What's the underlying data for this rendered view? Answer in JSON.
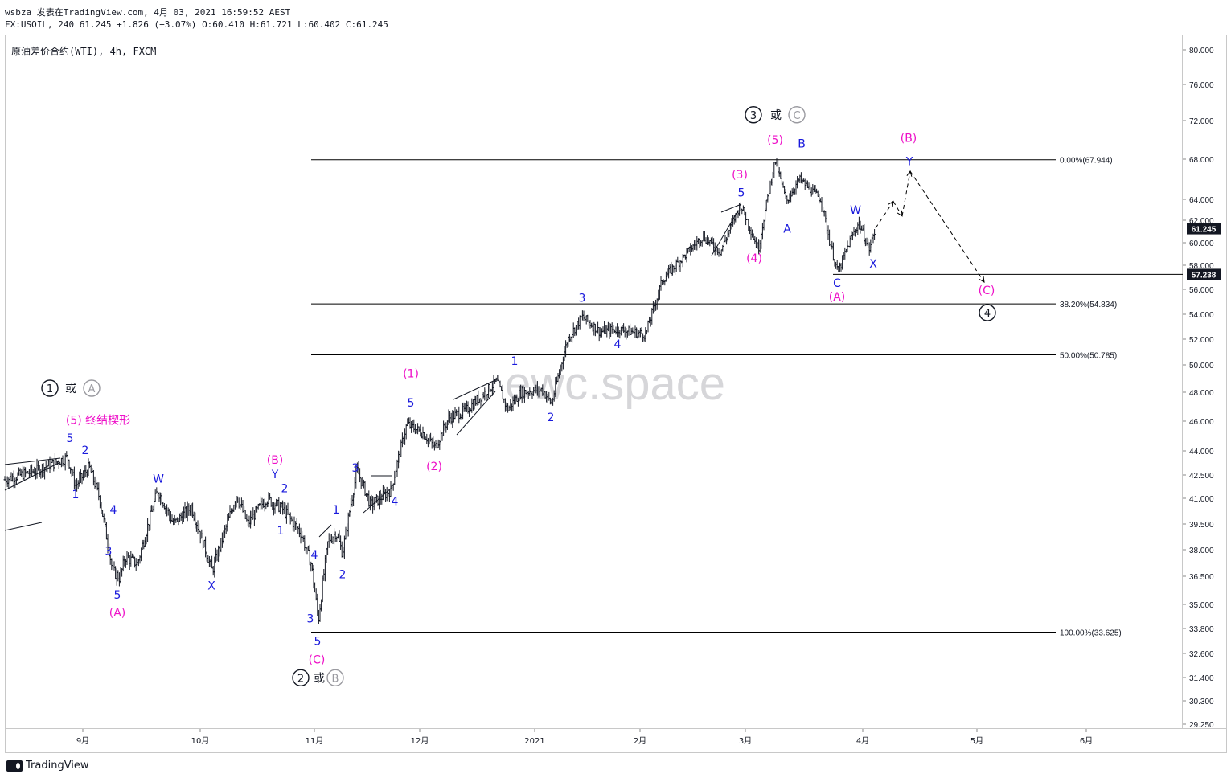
{
  "header": {
    "author": "wsbza",
    "published": "发表在TradingView.com,",
    "datetime": "4月 03, 2021 16:59:52 AEST",
    "symbol_line": "FX:USOIL, 240",
    "last": "61.245",
    "change": "+1.826 (+3.07%)",
    "open": "O:60.410",
    "high": "H:61.721",
    "low": "L:60.402",
    "close": "C:61.245"
  },
  "symbol_title": "原油差价合约(WTI), 4h, FXCM",
  "watermark": "ewc.space",
  "footer_brand": "TradingView",
  "colors": {
    "candle": "#131722",
    "blue_label": "#1a1adc",
    "magenta_label": "#ee10c8",
    "line": "#000000",
    "price_tag_bg": "#131722"
  },
  "chart_data": {
    "type": "candlestick",
    "symbol": "FX:USOIL",
    "timeframe": "240",
    "ylim": [
      28.8,
      81.2
    ],
    "price_axis_ticks": [
      "80.000",
      "76.000",
      "72.000",
      "68.000",
      "64.000",
      "62.000",
      "60.000",
      "58.000",
      "56.000",
      "54.000",
      "52.000",
      "50.000",
      "48.000",
      "46.000",
      "44.000",
      "42.500",
      "41.000",
      "39.500",
      "38.000",
      "36.500",
      "35.000",
      "33.800",
      "32.600",
      "31.400",
      "30.300",
      "29.250"
    ],
    "time_axis_labels": [
      "9月",
      "10月",
      "11月",
      "12月",
      "2021",
      "2月",
      "3月",
      "4月",
      "5月",
      "6月"
    ],
    "price_tags": [
      {
        "value": 61.245,
        "label": "61.245"
      },
      {
        "value": 57.238,
        "label": "57.238"
      }
    ],
    "fibonacci": [
      {
        "label": "0.00%(67.944)",
        "value": 67.944
      },
      {
        "label": "38.20%(54.834)",
        "value": 54.834
      },
      {
        "label": "50.00%(50.785)",
        "value": 50.785
      },
      {
        "label": "100.00%(33.625)",
        "value": 33.625
      }
    ],
    "waypoints": [
      {
        "t": 0,
        "p": 42.2
      },
      {
        "t": 40,
        "p": 42.8
      },
      {
        "t": 78,
        "p": 43.6
      },
      {
        "t": 88,
        "p": 41.8
      },
      {
        "t": 105,
        "p": 43.0
      },
      {
        "t": 118,
        "p": 41.0
      },
      {
        "t": 134,
        "p": 36.8
      },
      {
        "t": 143,
        "p": 36.4
      },
      {
        "t": 150,
        "p": 37.6
      },
      {
        "t": 165,
        "p": 37.2
      },
      {
        "t": 190,
        "p": 41.5
      },
      {
        "t": 210,
        "p": 39.5
      },
      {
        "t": 232,
        "p": 40.5
      },
      {
        "t": 258,
        "p": 36.8
      },
      {
        "t": 288,
        "p": 41.2
      },
      {
        "t": 302,
        "p": 39.5
      },
      {
        "t": 325,
        "p": 41.0
      },
      {
        "t": 345,
        "p": 40.4
      },
      {
        "t": 368,
        "p": 39.0
      },
      {
        "t": 381,
        "p": 37.2
      },
      {
        "t": 390,
        "p": 34.2
      },
      {
        "t": 402,
        "p": 38.5
      },
      {
        "t": 412,
        "p": 39.0
      },
      {
        "t": 420,
        "p": 37.8
      },
      {
        "t": 438,
        "p": 42.8
      },
      {
        "t": 455,
        "p": 40.6
      },
      {
        "t": 480,
        "p": 41.5
      },
      {
        "t": 500,
        "p": 45.8
      },
      {
        "t": 520,
        "p": 45.2
      },
      {
        "t": 535,
        "p": 44.2
      },
      {
        "t": 552,
        "p": 46.2
      },
      {
        "t": 575,
        "p": 46.8
      },
      {
        "t": 612,
        "p": 48.8
      },
      {
        "t": 625,
        "p": 46.8
      },
      {
        "t": 642,
        "p": 48.0
      },
      {
        "t": 668,
        "p": 48.2
      },
      {
        "t": 680,
        "p": 47.2
      },
      {
        "t": 700,
        "p": 52.0
      },
      {
        "t": 718,
        "p": 53.8
      },
      {
        "t": 740,
        "p": 52.6
      },
      {
        "t": 762,
        "p": 52.8
      },
      {
        "t": 797,
        "p": 52.4
      },
      {
        "t": 818,
        "p": 56.8
      },
      {
        "t": 845,
        "p": 58.8
      },
      {
        "t": 868,
        "p": 60.6
      },
      {
        "t": 890,
        "p": 59.2
      },
      {
        "t": 915,
        "p": 63.5
      },
      {
        "t": 937,
        "p": 59.4
      },
      {
        "t": 958,
        "p": 67.9
      },
      {
        "t": 972,
        "p": 63.8
      },
      {
        "t": 988,
        "p": 66.0
      },
      {
        "t": 1015,
        "p": 64.0
      },
      {
        "t": 1025,
        "p": 60.4
      },
      {
        "t": 1036,
        "p": 57.3
      },
      {
        "t": 1050,
        "p": 60.0
      },
      {
        "t": 1062,
        "p": 61.8
      },
      {
        "t": 1075,
        "p": 59.4
      },
      {
        "t": 1083,
        "p": 61.245
      }
    ],
    "projection": [
      {
        "t": 1083,
        "p": 61.3
      },
      {
        "t": 1105,
        "p": 63.8
      },
      {
        "t": 1116,
        "p": 62.4
      },
      {
        "t": 1126,
        "p": 66.8
      },
      {
        "t": 1218,
        "p": 56.6
      }
    ],
    "wave_labels": [
      {
        "text": "3",
        "t": 931,
        "p": 72.2,
        "color": "black",
        "circled": true
      },
      {
        "text": "或",
        "t": 959,
        "p": 72.2,
        "color": "black"
      },
      {
        "text": "C",
        "t": 985,
        "p": 72.2,
        "color": "gray",
        "circled": true
      },
      {
        "text": "(5)",
        "t": 958,
        "p": 69.6,
        "color": "magenta"
      },
      {
        "text": "B",
        "t": 991,
        "p": 69.2,
        "color": "blue"
      },
      {
        "text": "(B)",
        "t": 1124,
        "p": 69.8,
        "color": "magenta"
      },
      {
        "text": "Y",
        "t": 1125,
        "p": 67.4,
        "color": "blue"
      },
      {
        "text": "(3)",
        "t": 914,
        "p": 66.1,
        "color": "magenta"
      },
      {
        "text": "5",
        "t": 916,
        "p": 64.3,
        "color": "blue"
      },
      {
        "text": "W",
        "t": 1058,
        "p": 62.6,
        "color": "blue"
      },
      {
        "text": "A",
        "t": 973,
        "p": 60.9,
        "color": "blue"
      },
      {
        "text": "(4)",
        "t": 932,
        "p": 58.3,
        "color": "magenta"
      },
      {
        "text": "X",
        "t": 1080,
        "p": 57.8,
        "color": "blue"
      },
      {
        "text": "C",
        "t": 1035,
        "p": 56.2,
        "color": "blue"
      },
      {
        "text": "(C)",
        "t": 1221,
        "p": 55.6,
        "color": "magenta"
      },
      {
        "text": "(A)",
        "t": 1035,
        "p": 55.1,
        "color": "magenta"
      },
      {
        "text": "4",
        "t": 1222,
        "p": 53.8,
        "color": "black",
        "circled": true
      },
      {
        "text": "3",
        "t": 718,
        "p": 55.0,
        "color": "blue"
      },
      {
        "text": "4",
        "t": 762,
        "p": 51.3,
        "color": "blue"
      },
      {
        "text": "1",
        "t": 634,
        "p": 50.0,
        "color": "blue"
      },
      {
        "text": "(1)",
        "t": 505,
        "p": 49.1,
        "color": "magenta"
      },
      {
        "text": "1",
        "t": 56,
        "p": 48.0,
        "color": "black",
        "circled": true
      },
      {
        "text": "或",
        "t": 82,
        "p": 48.0,
        "color": "black"
      },
      {
        "text": "A",
        "t": 108,
        "p": 48.0,
        "color": "gray",
        "circled": true
      },
      {
        "text": "5",
        "t": 505,
        "p": 47.0,
        "color": "blue"
      },
      {
        "text": "2",
        "t": 679,
        "p": 46.0,
        "color": "blue"
      },
      {
        "text": "(5) 终结楔形",
        "t": 116,
        "p": 45.8,
        "color": "magenta"
      },
      {
        "text": "5",
        "t": 81,
        "p": 44.6,
        "color": "blue"
      },
      {
        "text": "2",
        "t": 100,
        "p": 43.8,
        "color": "blue"
      },
      {
        "text": "(B)",
        "t": 336,
        "p": 43.2,
        "color": "magenta"
      },
      {
        "text": "(2)",
        "t": 534,
        "p": 42.8,
        "color": "magenta"
      },
      {
        "text": "3",
        "t": 436,
        "p": 42.7,
        "color": "blue"
      },
      {
        "text": "Y",
        "t": 336,
        "p": 42.3,
        "color": "blue"
      },
      {
        "text": "W",
        "t": 191,
        "p": 42.0,
        "color": "blue"
      },
      {
        "text": "2",
        "t": 348,
        "p": 41.4,
        "color": "blue"
      },
      {
        "text": "1",
        "t": 88,
        "p": 41.0,
        "color": "blue"
      },
      {
        "text": "4",
        "t": 485,
        "p": 40.6,
        "color": "blue"
      },
      {
        "text": "4",
        "t": 135,
        "p": 40.1,
        "color": "blue"
      },
      {
        "text": "1",
        "t": 412,
        "p": 40.1,
        "color": "blue"
      },
      {
        "text": "1",
        "t": 343,
        "p": 38.9,
        "color": "blue"
      },
      {
        "text": "3",
        "t": 129,
        "p": 37.7,
        "color": "blue"
      },
      {
        "text": "4",
        "t": 385,
        "p": 37.5,
        "color": "blue"
      },
      {
        "text": "2",
        "t": 420,
        "p": 36.4,
        "color": "blue"
      },
      {
        "text": "X",
        "t": 257,
        "p": 35.8,
        "color": "blue"
      },
      {
        "text": "5",
        "t": 140,
        "p": 35.3,
        "color": "blue"
      },
      {
        "text": "(A)",
        "t": 140,
        "p": 34.4,
        "color": "magenta"
      },
      {
        "text": "3",
        "t": 380,
        "p": 34.1,
        "color": "blue"
      },
      {
        "text": "5",
        "t": 389,
        "p": 33.0,
        "color": "blue"
      },
      {
        "text": "(C)",
        "t": 388,
        "p": 32.1,
        "color": "magenta"
      },
      {
        "text": "2",
        "t": 368,
        "p": 31.2,
        "color": "black",
        "circled": true
      },
      {
        "text": "或",
        "t": 391,
        "p": 31.2,
        "color": "black"
      },
      {
        "text": "B",
        "t": 411,
        "p": 31.2,
        "color": "gray",
        "circled": true
      }
    ]
  }
}
